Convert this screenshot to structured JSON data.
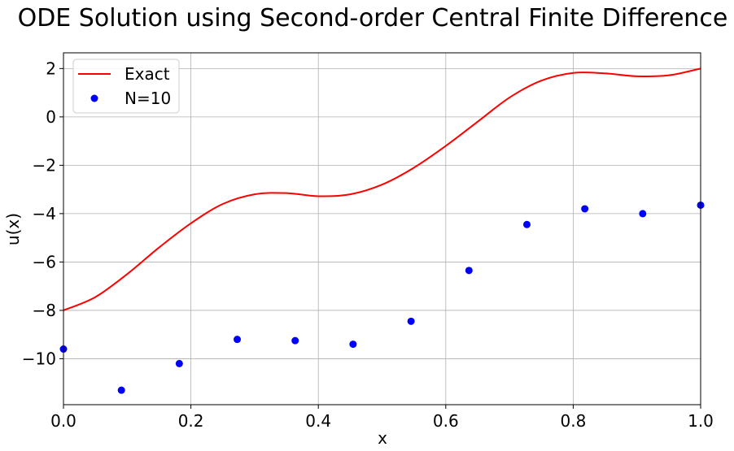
{
  "chart_data": {
    "type": "line",
    "title": "ODE Solution using Second-order Central Finite Difference",
    "xlabel": "x",
    "ylabel": "u(x)",
    "xlim": [
      0,
      1
    ],
    "ylim": [
      -11.9,
      2.65
    ],
    "grid": true,
    "legend_placement": "top-left",
    "x_ticks": [
      0.0,
      0.2,
      0.4,
      0.6,
      0.8,
      1.0
    ],
    "x_tick_labels": [
      "0.0",
      "0.2",
      "0.4",
      "0.6",
      "0.8",
      "1.0"
    ],
    "y_ticks": [
      -10,
      -8,
      -6,
      -4,
      -2,
      0,
      2
    ],
    "y_tick_labels": [
      "−10",
      "−8",
      "−6",
      "−4",
      "−2",
      "0",
      "2"
    ],
    "series": [
      {
        "name": "Exact",
        "kind": "line",
        "color": "#ff0000",
        "x": [
          0.0,
          0.05,
          0.1,
          0.15,
          0.2,
          0.25,
          0.3,
          0.35,
          0.4,
          0.45,
          0.5,
          0.55,
          0.6,
          0.65,
          0.7,
          0.75,
          0.8,
          0.85,
          0.9,
          0.95,
          1.0
        ],
        "y": [
          -8.0,
          -7.45,
          -6.5,
          -5.4,
          -4.4,
          -3.6,
          -3.2,
          -3.15,
          -3.28,
          -3.2,
          -2.8,
          -2.1,
          -1.2,
          -0.2,
          0.8,
          1.5,
          1.82,
          1.8,
          1.68,
          1.72,
          2.0
        ]
      },
      {
        "name": "N=10",
        "kind": "scatter",
        "color": "#0000ff",
        "x": [
          0.0,
          0.0909,
          0.1818,
          0.2727,
          0.3636,
          0.4545,
          0.5455,
          0.6364,
          0.7273,
          0.8182,
          0.9091,
          1.0
        ],
        "y": [
          -9.6,
          -11.3,
          -10.2,
          -9.2,
          -9.25,
          -9.4,
          -8.45,
          -6.35,
          -4.45,
          -3.8,
          -4.0,
          -3.65
        ]
      }
    ]
  }
}
